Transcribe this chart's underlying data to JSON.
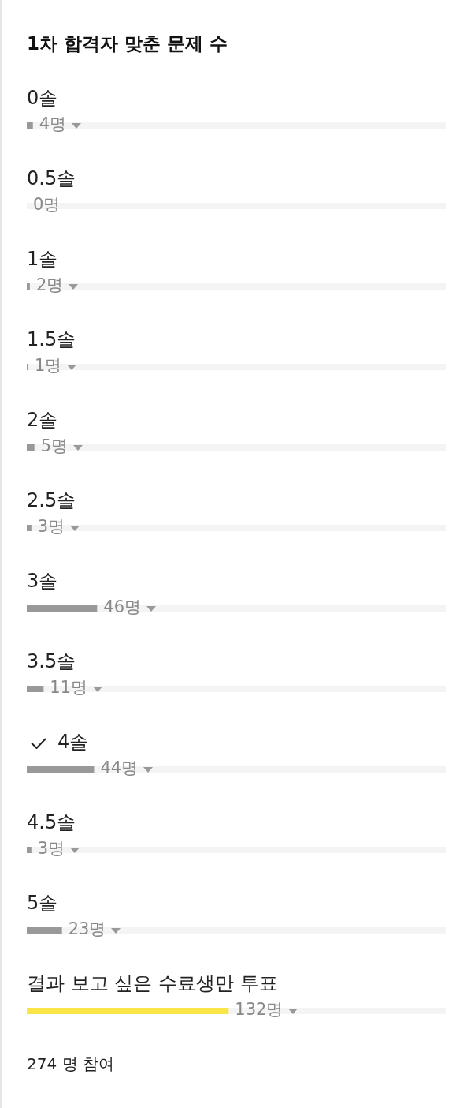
{
  "chart_data": {
    "type": "bar",
    "orientation": "horizontal",
    "title": "1차 합격자 맞춘 문제 수",
    "categories": [
      "0솔",
      "0.5솔",
      "1솔",
      "1.5솔",
      "2솔",
      "2.5솔",
      "3솔",
      "3.5솔",
      "4솔",
      "4.5솔",
      "5솔",
      "결과 보고 싶은 수료생만 투표"
    ],
    "values": [
      4,
      0,
      2,
      1,
      5,
      3,
      46,
      11,
      44,
      3,
      23,
      132
    ],
    "value_labels": [
      "4명",
      "0명",
      "2명",
      "1명",
      "5명",
      "3명",
      "46명",
      "11명",
      "44명",
      "3명",
      "23명",
      "132명"
    ],
    "colors": [
      "#999999",
      "#999999",
      "#999999",
      "#999999",
      "#999999",
      "#999999",
      "#999999",
      "#999999",
      "#999999",
      "#999999",
      "#999999",
      "#f9e547"
    ],
    "xlim": [
      0,
      274
    ],
    "tick_labels": "y",
    "grid": "y",
    "legend": false,
    "annotations": [
      "274 명 참여"
    ]
  }
}
